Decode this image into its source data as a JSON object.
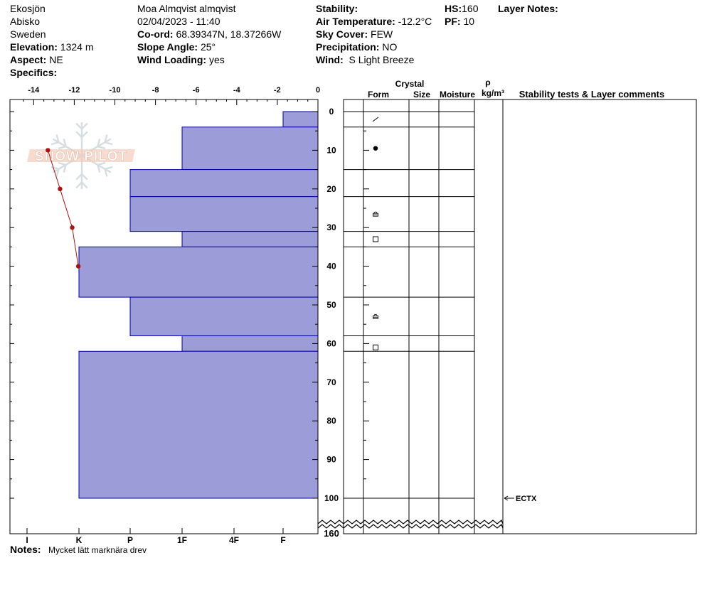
{
  "header": {
    "col1": {
      "location": "Ekosjön",
      "region": "Abisko",
      "country": "Sweden",
      "elevation_label": "Elevation:",
      "elevation_value": "1324 m",
      "aspect_label": "Aspect:",
      "aspect_value": "NE",
      "specifics_label": "Specifics:"
    },
    "col2": {
      "observer": "Moa Almqvist almqvist",
      "datetime": "02/04/2023 - 11:40",
      "coord_label": "Co-ord:",
      "coord_value": "68.39347N, 18.37266W",
      "slope_label": "Slope Angle:",
      "slope_value": "25°",
      "wind_loading_label": "Wind Loading:",
      "wind_loading_value": "yes"
    },
    "col3": {
      "stability_label": "Stability:",
      "air_temp_label": "Air Temperature:",
      "air_temp_value": "-12.2°C",
      "sky_label": "Sky Cover:",
      "sky_value": "FEW",
      "precip_label": "Precipitation:",
      "precip_value": "NO",
      "wind_label": "Wind:",
      "wind_value": "S Light Breeze"
    },
    "col4": {
      "hs_label": "HS:",
      "hs_value": "160",
      "pf_label": "PF:",
      "pf_value": "10"
    },
    "layer_notes_label": "Layer Notes:"
  },
  "columns": {
    "crystal": "Crystal",
    "form": "Form",
    "size": "Size",
    "moisture": "Moisture",
    "rho": "ρ",
    "density_unit": "kg/m³",
    "stability_comments": "Stability tests & Layer comments"
  },
  "notes": {
    "label": "Notes:",
    "text": "Mycket lätt marknära drev"
  },
  "watermark": "SNOW PILOT",
  "colors": {
    "layer_fill": "#9c9cd8",
    "layer_stroke": "#0000aa",
    "temperature": "#aa1111",
    "watermark": "#e8a080"
  },
  "chart_data": {
    "type": "bar",
    "title": "",
    "temperature_axis": {
      "ticks": [
        -14,
        -12,
        -10,
        -8,
        -6,
        -4,
        -2,
        0
      ],
      "range": [
        -14.5,
        0
      ]
    },
    "depth_axis": {
      "ticks": [
        0,
        10,
        20,
        30,
        40,
        50,
        60,
        70,
        80,
        90,
        100
      ],
      "range": [
        -3,
        100
      ],
      "break_label": "160"
    },
    "hardness_axis": {
      "ticks": [
        "I",
        "K",
        "P",
        "1F",
        "4F",
        "F"
      ]
    },
    "hardness_scale": {
      "F": 1,
      "4F": 2,
      "1F": 3,
      "P": 4,
      "K": 5,
      "I": 6
    },
    "layers": [
      {
        "top": 0,
        "bottom": 4,
        "hardness": "F"
      },
      {
        "top": 4,
        "bottom": 15,
        "hardness": "1F"
      },
      {
        "top": 15,
        "bottom": 22,
        "hardness": "P"
      },
      {
        "top": 22,
        "bottom": 31,
        "hardness": "P"
      },
      {
        "top": 31,
        "bottom": 35,
        "hardness": "1F"
      },
      {
        "top": 35,
        "bottom": 48,
        "hardness": "K"
      },
      {
        "top": 48,
        "bottom": 58,
        "hardness": "P"
      },
      {
        "top": 58,
        "bottom": 62,
        "hardness": "1F"
      },
      {
        "top": 62,
        "bottom": 100,
        "hardness": "K"
      }
    ],
    "temperature_profile": [
      {
        "depth": 10,
        "temp": -13.3
      },
      {
        "depth": 20,
        "temp": -12.7
      },
      {
        "depth": 30,
        "temp": -12.1
      },
      {
        "depth": 40,
        "temp": -11.8
      }
    ],
    "crystal_forms": [
      {
        "depth": 2,
        "symbol": "slash"
      },
      {
        "depth": 9.5,
        "symbol": "dot"
      },
      {
        "depth": 26.5,
        "symbol": "cup"
      },
      {
        "depth": 33,
        "symbol": "square"
      },
      {
        "depth": 53,
        "symbol": "cup"
      },
      {
        "depth": 61,
        "symbol": "square"
      }
    ],
    "stability_tests": [
      {
        "depth": 100,
        "label": "ECTX"
      }
    ]
  }
}
